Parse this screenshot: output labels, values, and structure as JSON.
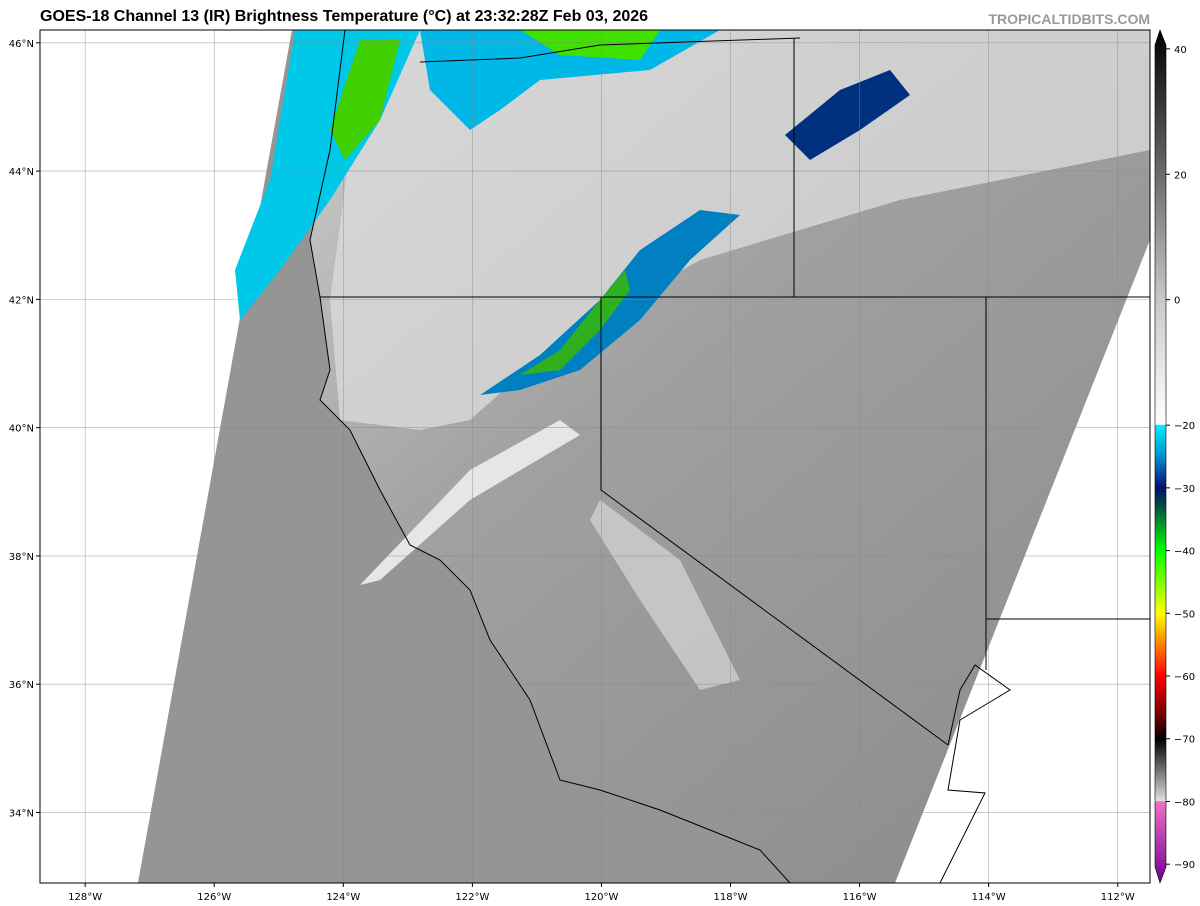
{
  "title": "GOES-18 Channel 13 (IR) Brightness Temperature (°C) at 23:32:28Z Feb 03, 2026",
  "watermark": "TROPICALTIDBITS.COM",
  "map": {
    "lon_ticks": [
      "128°W",
      "126°W",
      "124°W",
      "122°W",
      "120°W",
      "118°W",
      "116°W",
      "114°W",
      "112°W"
    ],
    "lon_values": [
      -128,
      -126,
      -124,
      -122,
      -120,
      -118,
      -116,
      -114,
      -112
    ],
    "lat_ticks": [
      "46°N",
      "44°N",
      "42°N",
      "40°N",
      "38°N",
      "36°N",
      "34°N"
    ],
    "lat_values": [
      46,
      44,
      42,
      40,
      38,
      36,
      34
    ],
    "lon_range": [
      -128.7,
      -111.5
    ],
    "lat_range": [
      32.9,
      46.2
    ],
    "grid": true
  },
  "colorbar": {
    "ticks": [
      "40",
      "20",
      "0",
      "−20",
      "−30",
      "−40",
      "−50",
      "−60",
      "−70",
      "−80",
      "−90"
    ],
    "tick_values": [
      40,
      20,
      0,
      -20,
      -30,
      -40,
      -50,
      -60,
      -70,
      -80,
      -90
    ],
    "range": [
      -93,
      43
    ],
    "stops": [
      {
        "v": 43,
        "c": "#000000"
      },
      {
        "v": 0,
        "c": "#c8c8c8"
      },
      {
        "v": -19.9,
        "c": "#ffffff"
      },
      {
        "v": -20,
        "c": "#00f0ff"
      },
      {
        "v": -25,
        "c": "#0090d0"
      },
      {
        "v": -30,
        "c": "#001070"
      },
      {
        "v": -33,
        "c": "#005040"
      },
      {
        "v": -40,
        "c": "#00ff00"
      },
      {
        "v": -50,
        "c": "#ffff00"
      },
      {
        "v": -55,
        "c": "#ff8000"
      },
      {
        "v": -60,
        "c": "#ff0000"
      },
      {
        "v": -67,
        "c": "#600000"
      },
      {
        "v": -70,
        "c": "#000000"
      },
      {
        "v": -79.9,
        "c": "#e0e0e0"
      },
      {
        "v": -80,
        "c": "#f070c8"
      },
      {
        "v": -93,
        "c": "#700090"
      }
    ]
  }
}
